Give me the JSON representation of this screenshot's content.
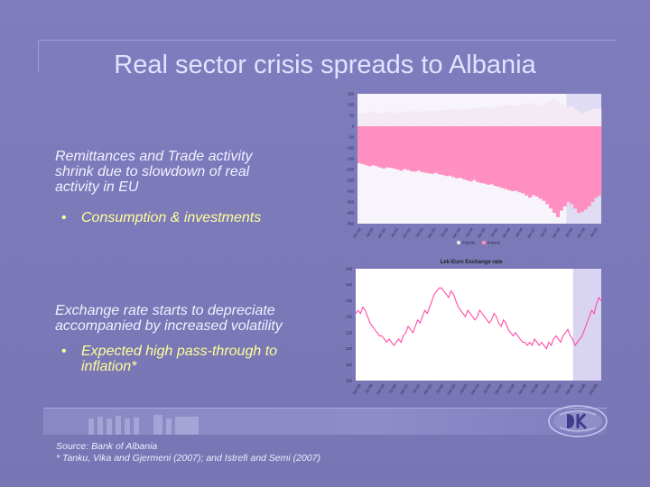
{
  "title": "Real sector crisis spreads to Albania",
  "block1": {
    "text_lines": [
      "Remittances and Trade activity",
      "shrink due to slowdown of real",
      "activity in EU"
    ],
    "bullet": "Consumption & investments"
  },
  "block2": {
    "text_lines": [
      "Exchange rate starts to depreciate",
      "accompanied by increased volatility"
    ],
    "bullet_lines": [
      "Expected high pass-through to",
      "inflation*"
    ]
  },
  "source": {
    "line1": "Source: Bank of Albania",
    "line2": "* Tanku, Vika and Gjermeni (2007);  and Istrefi and Semi (2007)"
  },
  "chart_data": [
    {
      "type": "bar",
      "title": "",
      "yticks": [
        "150",
        "100",
        "50",
        "0",
        "-50",
        "-100",
        "-150",
        "-200",
        "-250",
        "-300",
        "-350",
        "-400",
        "-450"
      ],
      "ylim": [
        -450,
        150
      ],
      "series": [
        {
          "name": "Exports",
          "color": "#f4eaf6",
          "values": [
            58,
            60,
            62,
            64,
            66,
            62,
            60,
            63,
            65,
            66,
            64,
            62,
            65,
            66,
            68,
            70,
            68,
            66,
            70,
            72,
            70,
            68,
            72,
            74,
            72,
            76,
            78,
            80,
            76,
            74,
            78,
            80,
            82,
            80,
            84,
            86,
            88,
            90,
            86,
            84,
            92,
            95,
            98,
            100,
            96,
            94,
            98,
            102,
            105,
            108,
            100,
            96,
            98,
            104,
            110,
            118,
            125,
            115,
            105,
            95,
            88,
            92,
            80,
            70,
            60,
            68,
            74,
            78,
            80,
            82
          ]
        },
        {
          "name": "Imports",
          "color": "#ff8fc0",
          "values": [
            -170,
            -175,
            -180,
            -185,
            -180,
            -185,
            -190,
            -195,
            -190,
            -192,
            -195,
            -200,
            -205,
            -198,
            -202,
            -208,
            -210,
            -205,
            -212,
            -215,
            -218,
            -220,
            -215,
            -222,
            -225,
            -230,
            -228,
            -235,
            -240,
            -238,
            -245,
            -250,
            -255,
            -248,
            -258,
            -262,
            -265,
            -270,
            -268,
            -275,
            -280,
            -285,
            -290,
            -295,
            -300,
            -298,
            -305,
            -310,
            -320,
            -330,
            -318,
            -325,
            -335,
            -345,
            -360,
            -380,
            -400,
            -420,
            -390,
            -370,
            -350,
            -360,
            -380,
            -400,
            -395,
            -385,
            -370,
            -350,
            -330,
            -320
          ]
        }
      ],
      "x_tick_labels": [
        "Jan-00",
        "Jul-00",
        "Jan-01",
        "Jul-01",
        "Jan-02",
        "Jul-02",
        "Jan-03",
        "Jul-03",
        "Jan-04",
        "Jul-04",
        "Jan-05",
        "Jul-05",
        "Jan-06",
        "Jul-06",
        "Jan-07",
        "Jul-07",
        "Jan-08",
        "Jul-08",
        "Jan-09",
        "Jul-09"
      ],
      "legend": [
        "Exports",
        "Imports"
      ],
      "legend_position": "bottom",
      "highlight_region": "right",
      "grid": false
    },
    {
      "type": "line",
      "title": "Lek-Euro Exchange rate",
      "yticks": [
        "145",
        "140",
        "135",
        "130",
        "125",
        "120",
        "115",
        "110"
      ],
      "ylim": [
        110,
        145
      ],
      "series": [
        {
          "name": "",
          "color": "#ff4da6",
          "values": [
            131,
            132,
            131,
            133,
            132,
            130,
            128,
            127,
            126,
            125,
            124,
            124,
            123,
            122,
            123,
            122,
            121,
            122,
            123,
            122,
            124,
            125,
            127,
            126,
            125,
            127,
            129,
            128,
            130,
            132,
            131,
            133,
            135,
            137,
            138,
            139,
            139,
            138,
            137,
            136,
            138,
            137,
            135,
            133,
            132,
            131,
            130,
            132,
            131,
            130,
            129,
            130,
            132,
            131,
            130,
            129,
            128,
            129,
            131,
            130,
            128,
            127,
            129,
            128,
            126,
            125,
            124,
            125,
            124,
            123,
            122,
            122,
            121,
            122,
            121,
            123,
            122,
            121,
            122,
            121,
            120,
            122,
            121,
            123,
            124,
            123,
            122,
            124,
            125,
            126,
            124,
            123,
            121,
            122,
            123,
            124,
            126,
            128,
            130,
            132,
            131,
            134,
            136,
            135
          ]
        }
      ],
      "x_tick_labels": [
        "Jan-99",
        "Jul-99",
        "Jan-00",
        "Jul-00",
        "Jan-01",
        "Jul-01",
        "Jan-02",
        "Jul-02",
        "Jan-03",
        "Jul-03",
        "Jan-04",
        "Jul-04",
        "Jan-05",
        "Jul-05",
        "Jan-06",
        "Jul-06",
        "Jan-07",
        "Jul-07",
        "Jan-08",
        "Jul-08",
        "Jan-09"
      ],
      "highlight_region": "right",
      "grid": false
    }
  ]
}
